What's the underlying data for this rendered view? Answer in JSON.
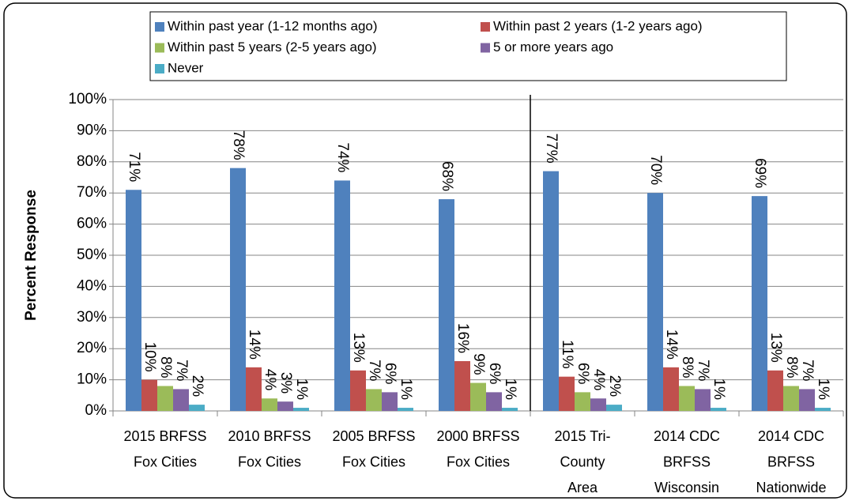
{
  "chart_data": {
    "type": "bar",
    "y_label": "Percent Response",
    "categories": [
      [
        "2015 BRFSS",
        "Fox Cities"
      ],
      [
        "2010 BRFSS",
        "Fox Cities"
      ],
      [
        "2005 BRFSS",
        "Fox Cities"
      ],
      [
        "2000 BRFSS",
        "Fox Cities"
      ],
      [
        "2015 Tri-",
        "County",
        "Area"
      ],
      [
        "2014 CDC",
        "BRFSS",
        "Wisconsin"
      ],
      [
        "2014 CDC",
        "BRFSS",
        "Nationwide"
      ]
    ],
    "series": [
      {
        "name": "Within past year (1-12 months ago)",
        "color": "#4f81bd",
        "values": [
          71,
          78,
          74,
          68,
          77,
          70,
          69
        ],
        "value_labels": [
          "71%",
          "78%",
          "74%",
          "68%",
          "77%",
          "70%",
          "69%"
        ]
      },
      {
        "name": "Within past 2 years (1-2 years ago)",
        "color": "#c0504d",
        "values": [
          10,
          14,
          13,
          16,
          11,
          14,
          13
        ],
        "value_labels": [
          "10%",
          "14%",
          "13%",
          "16%",
          "11%",
          "14%",
          "13%"
        ]
      },
      {
        "name": "Within past 5 years (2-5 years ago)",
        "color": "#9bbb59",
        "values": [
          8,
          4,
          7,
          9,
          6,
          8,
          8
        ],
        "value_labels": [
          "8%",
          "4%",
          "7%",
          "9%",
          "6%",
          "8%",
          "8%"
        ]
      },
      {
        "name": "5 or more years ago",
        "color": "#8064a2",
        "values": [
          7,
          3,
          6,
          6,
          4,
          7,
          7
        ],
        "value_labels": [
          "7%",
          "3%",
          "6%",
          "6%",
          "4%",
          "7%",
          "7%"
        ]
      },
      {
        "name": "Never",
        "color": "#4bacc6",
        "values": [
          2,
          1,
          1,
          1,
          2,
          1,
          1
        ],
        "value_labels": [
          "2%",
          "1%",
          "1%",
          "1%",
          "2%",
          "1%",
          "1%"
        ]
      }
    ],
    "ylim": [
      0,
      100
    ],
    "yticks": [
      {
        "value": 0,
        "label": "0%"
      },
      {
        "value": 10,
        "label": "10%"
      },
      {
        "value": 20,
        "label": "20%"
      },
      {
        "value": 30,
        "label": "30%"
      },
      {
        "value": 40,
        "label": "40%"
      },
      {
        "value": 50,
        "label": "50%"
      },
      {
        "value": 60,
        "label": "60%"
      },
      {
        "value": 70,
        "label": "70%"
      },
      {
        "value": 80,
        "label": "80%"
      },
      {
        "value": 90,
        "label": "90%"
      },
      {
        "value": 100,
        "label": "100%"
      }
    ],
    "grid": true,
    "legend": "top"
  }
}
